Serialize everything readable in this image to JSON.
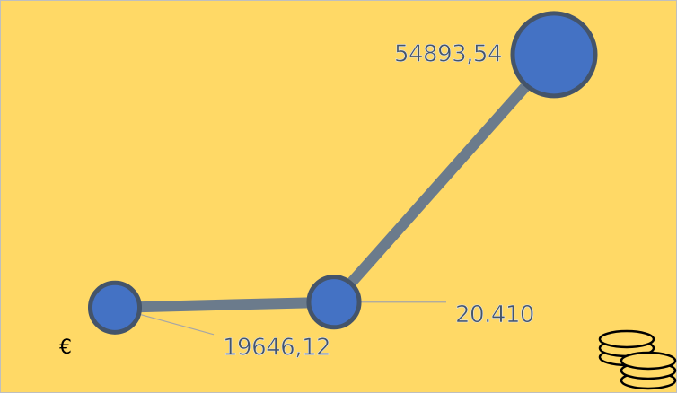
{
  "chart_data": {
    "type": "bubble-line",
    "values": [
      19646.12,
      20410,
      54893.54
    ],
    "value_labels": [
      "19646,12",
      "20.410",
      "54893,54"
    ],
    "unit_label": "€",
    "color": "#4472c4",
    "line_color": "#6b7b8c",
    "ylim": [
      10000,
      60000
    ]
  }
}
